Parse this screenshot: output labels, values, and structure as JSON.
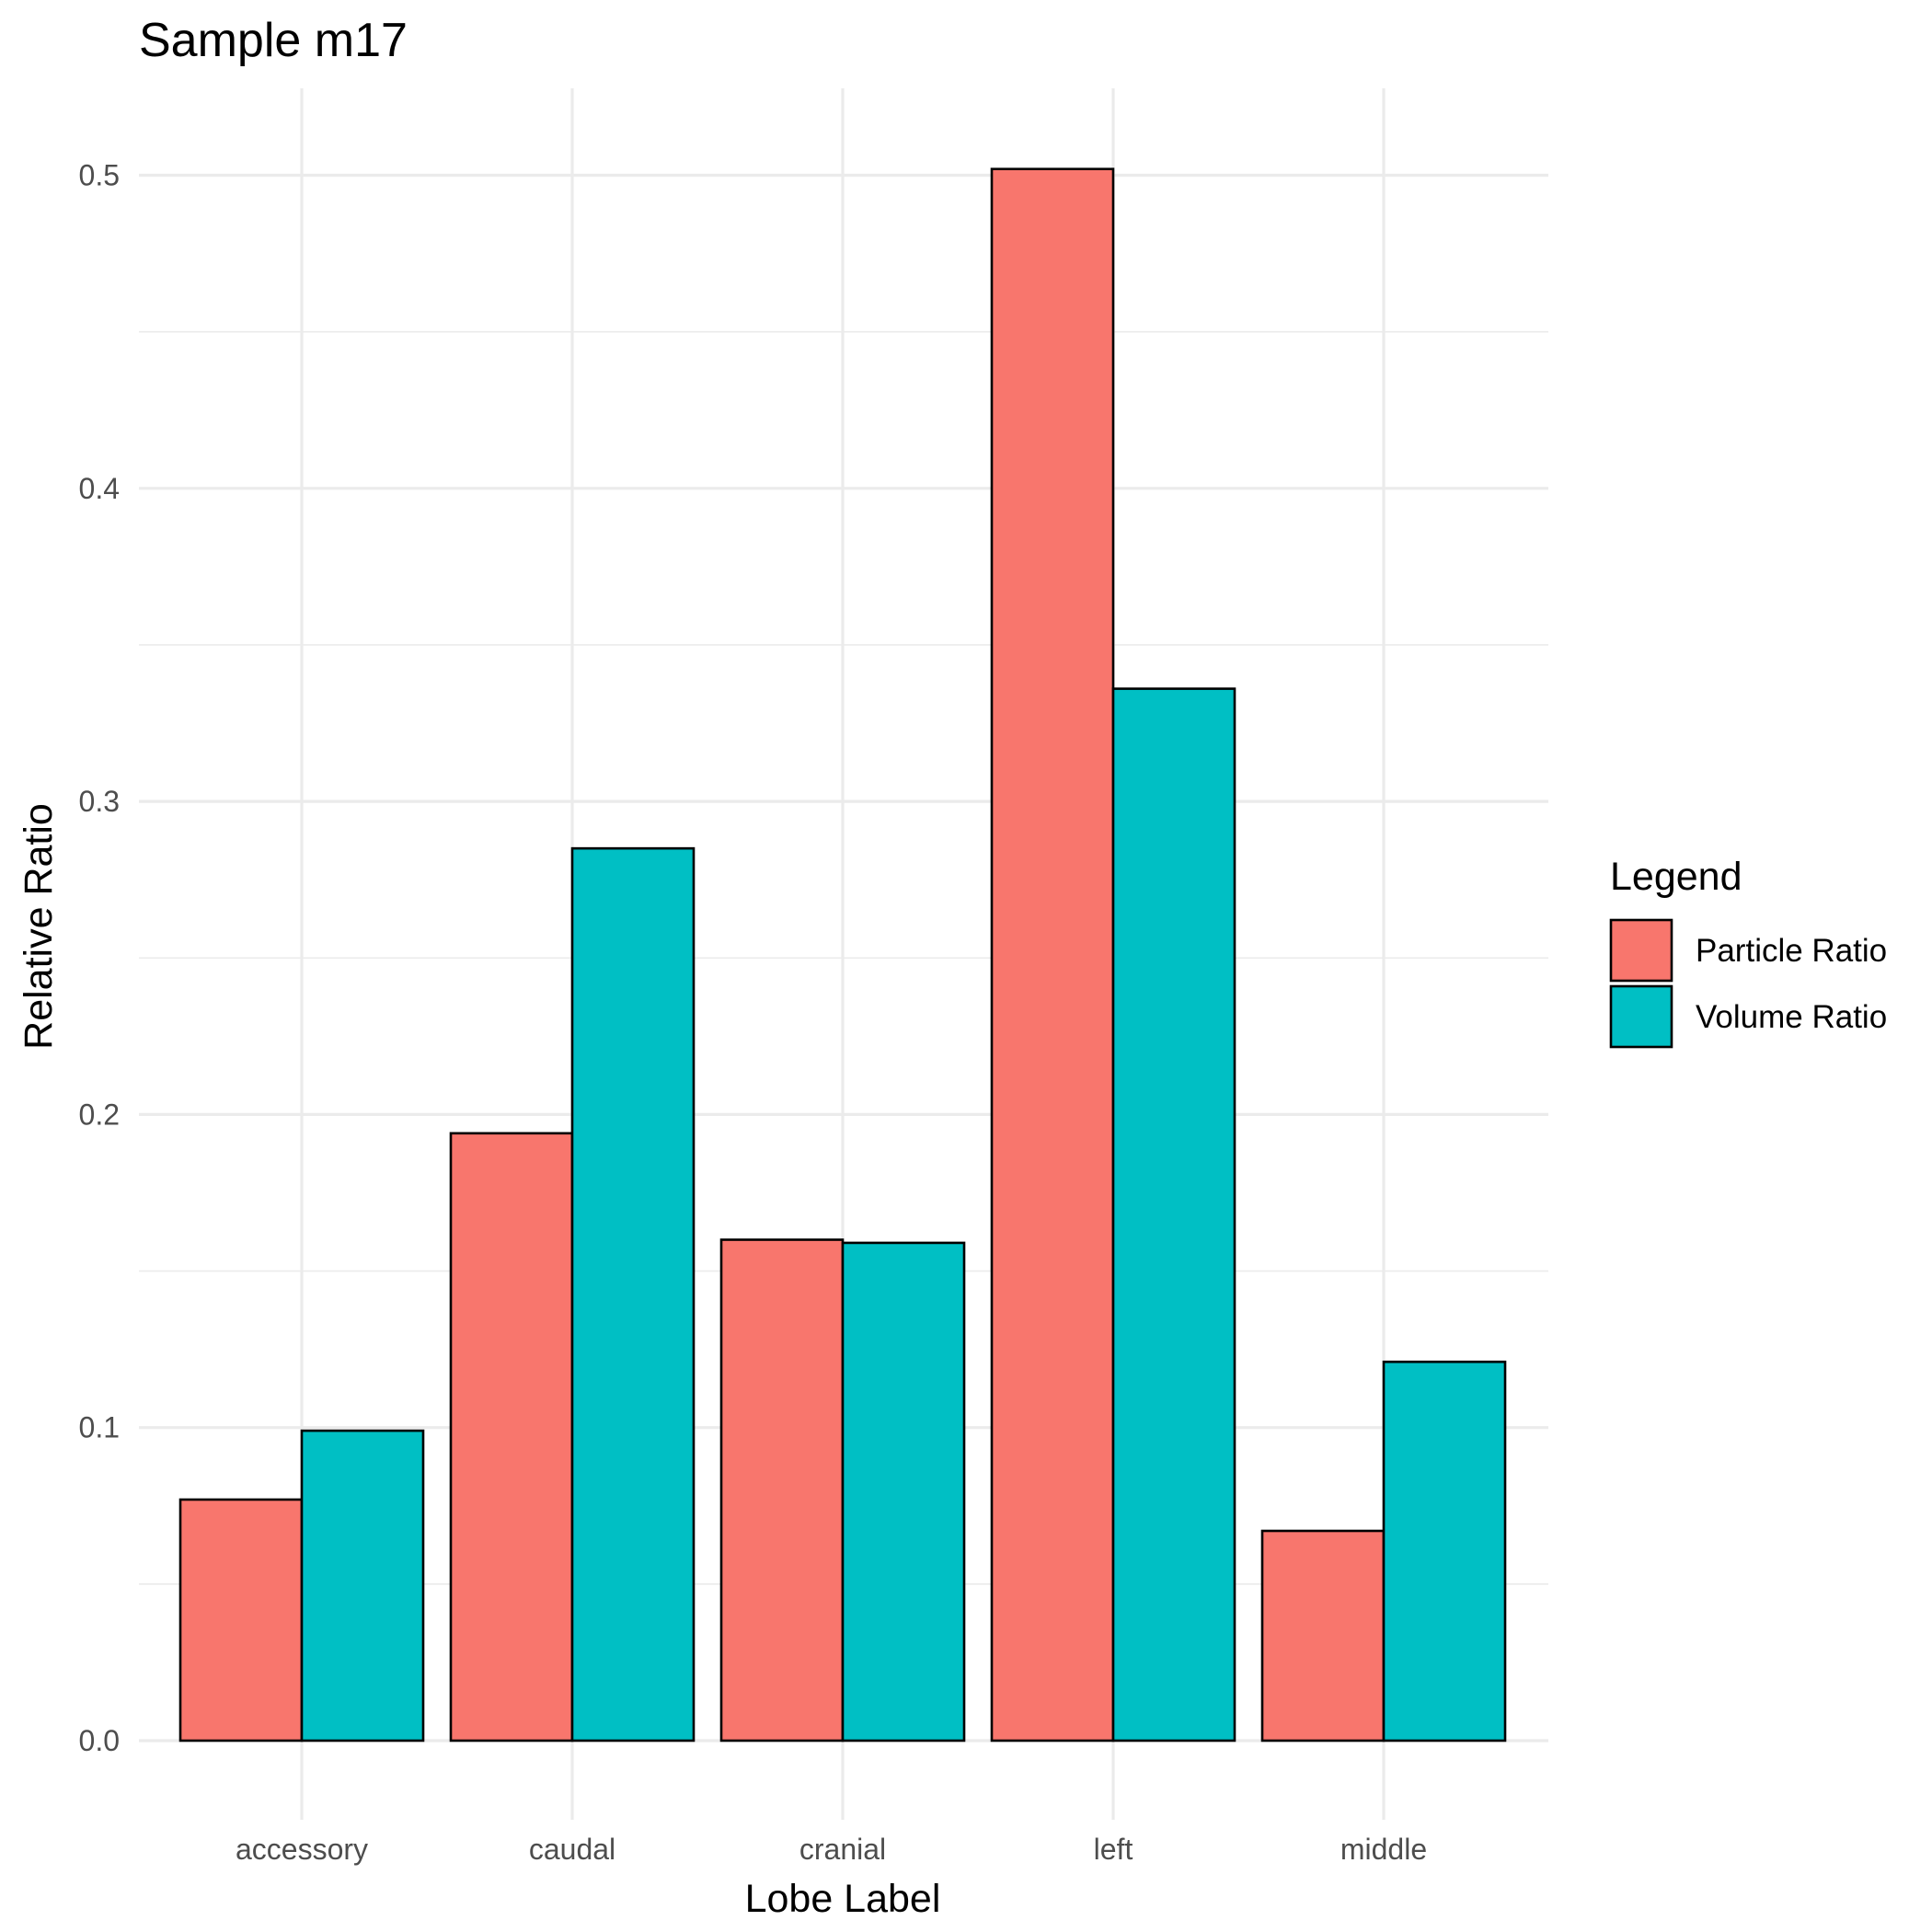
{
  "chart_data": {
    "type": "bar",
    "title": "Sample m17",
    "xlabel": "Lobe Label",
    "ylabel": "Relative Ratio",
    "categories": [
      "accessory",
      "caudal",
      "cranial",
      "left",
      "middle"
    ],
    "series": [
      {
        "name": "Particle Ratio",
        "color": "#F8766D",
        "values": [
          0.077,
          0.194,
          0.16,
          0.502,
          0.067
        ]
      },
      {
        "name": "Volume Ratio",
        "color": "#00BFC4",
        "values": [
          0.099,
          0.285,
          0.159,
          0.336,
          0.121
        ]
      }
    ],
    "ylim": [
      -0.024,
      0.527
    ],
    "y_ticks": [
      0.0,
      0.1,
      0.2,
      0.3,
      0.4,
      0.5
    ],
    "y_tick_labels": [
      "0.0",
      "0.1",
      "0.2",
      "0.3",
      "0.4",
      "0.5"
    ],
    "grid": true,
    "legend": {
      "title": "Legend",
      "position": "right"
    }
  }
}
